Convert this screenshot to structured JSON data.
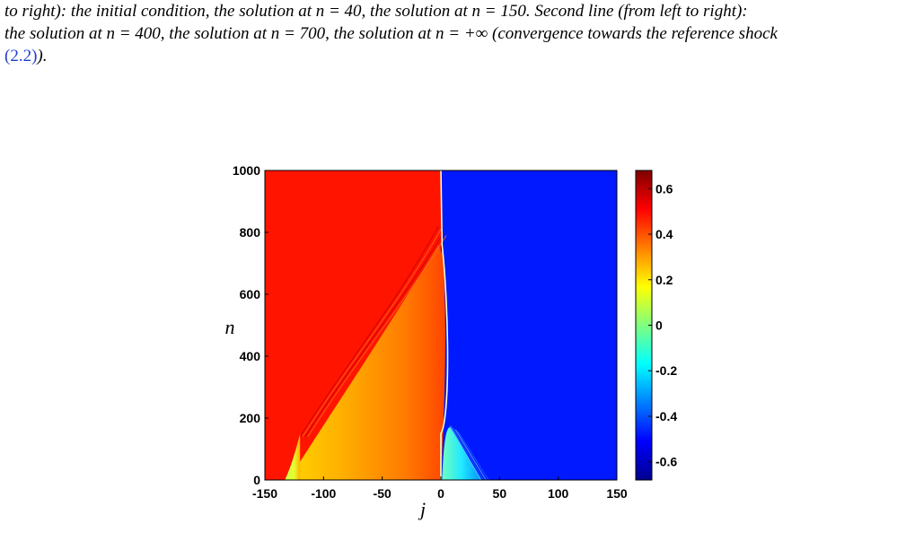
{
  "caption": {
    "line1": "to right): the initial condition, the solution at n = 40, the solution at n = 150. Second line (from left to right):",
    "line2": "the solution at n = 400, the solution at n = 700, the solution at n = +∞ (convergence towards the reference shock",
    "line3_ref": "(2.2)",
    "line3_tail": ")."
  },
  "chart_data": {
    "type": "heatmap",
    "title": "",
    "xlabel": "j",
    "ylabel": "n",
    "xlim": [
      -150,
      150
    ],
    "ylim": [
      0,
      1000
    ],
    "x_ticks": [
      "-150",
      "-100",
      "-50",
      "0",
      "50",
      "100",
      "150"
    ],
    "y_ticks": [
      "0",
      "200",
      "400",
      "600",
      "800",
      "1000"
    ],
    "colormap": "jet",
    "colorbar": {
      "range": [
        -0.68,
        0.68
      ],
      "ticks": [
        "-0.6",
        "-0.4",
        "-0.2",
        "0",
        "0.2",
        "0.4",
        "0.6"
      ]
    },
    "regions": {
      "left_state_value": 0.5,
      "right_state_value": -0.5,
      "shock_position_j": 0,
      "rarefaction_fan_value_range": [
        0.45,
        0.2
      ],
      "initial_left_step_j": [
        -133,
        -120
      ],
      "right_fan_j": [
        0,
        35
      ],
      "shock_stabilizes_at_n": 750
    },
    "colors": {
      "left_state": "#ff1400",
      "right_state": "#0019ff"
    }
  }
}
